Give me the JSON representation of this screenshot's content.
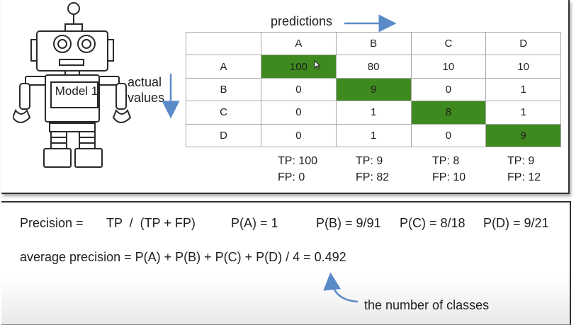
{
  "robot": {
    "label": "Model 1"
  },
  "matrix": {
    "top_label": "predictions",
    "side_label_1": "actual",
    "side_label_2": "values",
    "col_headers": [
      "A",
      "B",
      "C",
      "D"
    ],
    "rows": [
      {
        "label": "A",
        "values": [
          "100",
          "80",
          "10",
          "10"
        ]
      },
      {
        "label": "B",
        "values": [
          "0",
          "9",
          "0",
          "1"
        ]
      },
      {
        "label": "C",
        "values": [
          "0",
          "1",
          "8",
          "1"
        ]
      },
      {
        "label": "D",
        "values": [
          "0",
          "1",
          "0",
          "9"
        ]
      }
    ],
    "highlight_color": "#3f8a1f"
  },
  "counts": [
    {
      "tp": "TP: 100",
      "fp": "FP: 0"
    },
    {
      "tp": "TP: 9",
      "fp": "FP: 82"
    },
    {
      "tp": "TP: 8",
      "fp": "FP: 10"
    },
    {
      "tp": "TP: 9",
      "fp": "FP: 12"
    }
  ],
  "formulas": {
    "precision_label": "Precision =",
    "precision_expr": "TP  /  (TP + FP)",
    "pa": "P(A) = 1",
    "pb": "P(B) = 9/91",
    "pc": "P(C) = 8/18",
    "pd": "P(D) = 9/21",
    "average": "average precision = P(A) + P(B) + P(C) + P(D) / 4 = 0.492",
    "note": "the number of classes"
  },
  "colors": {
    "arrow": "#5b8ac8",
    "cell_highlight": "#3f8a1f"
  }
}
